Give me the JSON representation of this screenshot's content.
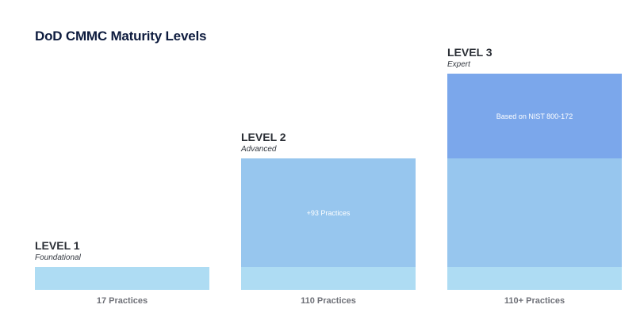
{
  "title": "DoD CMMC Maturity Levels",
  "colors": {
    "base": "#aedcf3",
    "mid": "#97c6ee",
    "top": "#7ba7eb",
    "title": "#0d1b3e"
  },
  "levels": [
    {
      "name": "LEVEL 1",
      "subtitle": "Foundational",
      "count": "17 Practices"
    },
    {
      "name": "LEVEL 2",
      "subtitle": "Advanced",
      "count": "110 Practices",
      "segment_label": "+93 Practices"
    },
    {
      "name": "LEVEL 3",
      "subtitle": "Expert",
      "count": "110+ Practices",
      "segment_label": "Based on NIST 800-172"
    }
  ]
}
